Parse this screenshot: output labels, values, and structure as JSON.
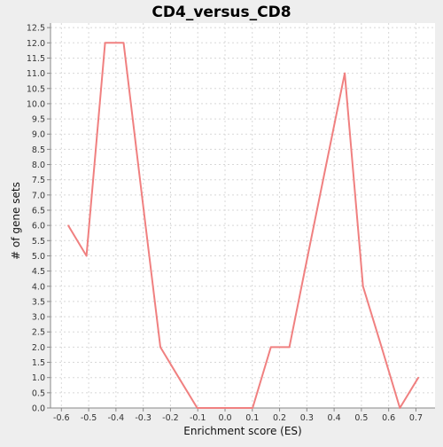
{
  "chart_data": {
    "type": "line",
    "title": "CD4_versus_CD8",
    "xlabel": "Enrichment score (ES)",
    "ylabel": "# of gene sets",
    "xlim": [
      -0.64,
      0.77
    ],
    "ylim": [
      0,
      12.65
    ],
    "xticks": [
      -0.6,
      -0.5,
      -0.4,
      -0.3,
      -0.2,
      -0.1,
      0.0,
      0.1,
      0.2,
      0.3,
      0.4,
      0.5,
      0.6,
      0.7
    ],
    "xtick_labels": [
      "-0.6",
      "-0.5",
      "-0.4",
      "-0.3",
      "-0.2",
      "-0.1",
      "0.0",
      "0.1",
      "0.2",
      "0.3",
      "0.4",
      "0.5",
      "0.6",
      "0.7"
    ],
    "yticks": [
      0,
      0.5,
      1,
      1.5,
      2,
      2.5,
      3,
      3.5,
      4,
      4.5,
      5,
      5.5,
      6,
      6.5,
      7,
      7.5,
      8,
      8.5,
      9,
      9.5,
      10,
      10.5,
      11,
      11.5,
      12,
      12.5
    ],
    "ytick_labels": [
      "0.0",
      "0.5",
      "1.0",
      "1.5",
      "2.0",
      "2.5",
      "3.0",
      "3.5",
      "4.0",
      "4.5",
      "5.0",
      "5.5",
      "6.0",
      "6.5",
      "7.0",
      "7.5",
      "8.0",
      "8.5",
      "9.0",
      "9.5",
      "10.0",
      "10.5",
      "11.0",
      "11.5",
      "12.0",
      "12.5"
    ],
    "grid": true,
    "series": [
      {
        "color": "#f08080",
        "x": [
          -0.575,
          -0.508,
          -0.44,
          -0.372,
          -0.305,
          -0.237,
          -0.17,
          -0.102,
          -0.034,
          0.033,
          0.101,
          0.168,
          0.236,
          0.303,
          0.371,
          0.439,
          0.506,
          0.574,
          0.641,
          0.709
        ],
        "y": [
          6,
          5,
          12,
          12,
          7,
          2,
          1,
          0,
          0,
          0,
          0,
          2,
          2,
          5,
          8,
          11,
          4,
          2,
          0,
          1
        ]
      }
    ]
  }
}
